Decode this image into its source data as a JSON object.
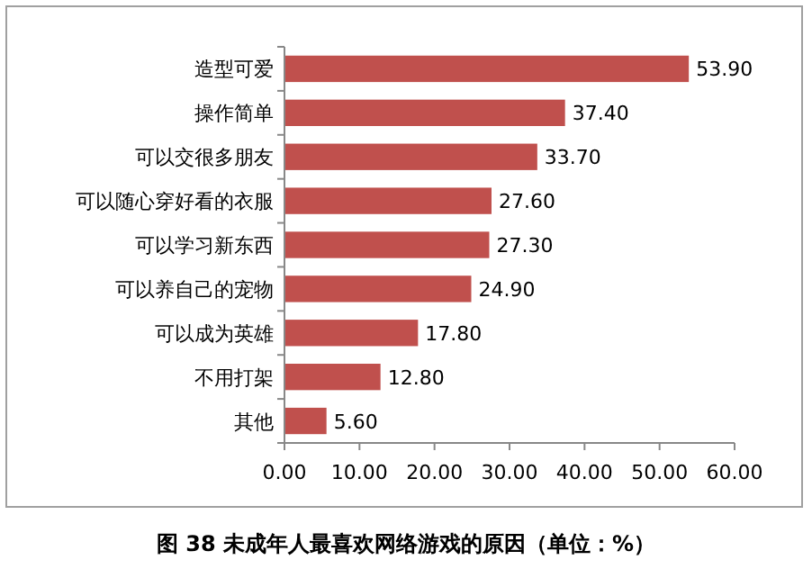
{
  "chart_data": {
    "type": "bar",
    "orientation": "horizontal",
    "title": "图 38 未成年人最喜欢网络游戏的原因（单位：%）",
    "categories": [
      "造型可爱",
      "操作简单",
      "可以交很多朋友",
      "可以随心穿好看的衣服",
      "可以学习新东西",
      "可以养自己的宠物",
      "可以成为英雄",
      "不用打架",
      "其他"
    ],
    "values": [
      53.9,
      37.4,
      33.7,
      27.6,
      27.3,
      24.9,
      17.8,
      12.8,
      5.6
    ],
    "value_labels": [
      "53.90",
      "37.40",
      "33.70",
      "27.60",
      "27.30",
      "24.90",
      "17.80",
      "12.80",
      "5.60"
    ],
    "color": "#c0504d",
    "xlim": [
      0,
      60
    ],
    "xticks": [
      {
        "value": 0,
        "label": "0.00"
      },
      {
        "value": 10,
        "label": "10.00"
      },
      {
        "value": 20,
        "label": "20.00"
      },
      {
        "value": 30,
        "label": "30.00"
      },
      {
        "value": 40,
        "label": "40.00"
      },
      {
        "value": 50,
        "label": "50.00"
      },
      {
        "value": 60,
        "label": "60.00"
      }
    ],
    "grid": false
  }
}
